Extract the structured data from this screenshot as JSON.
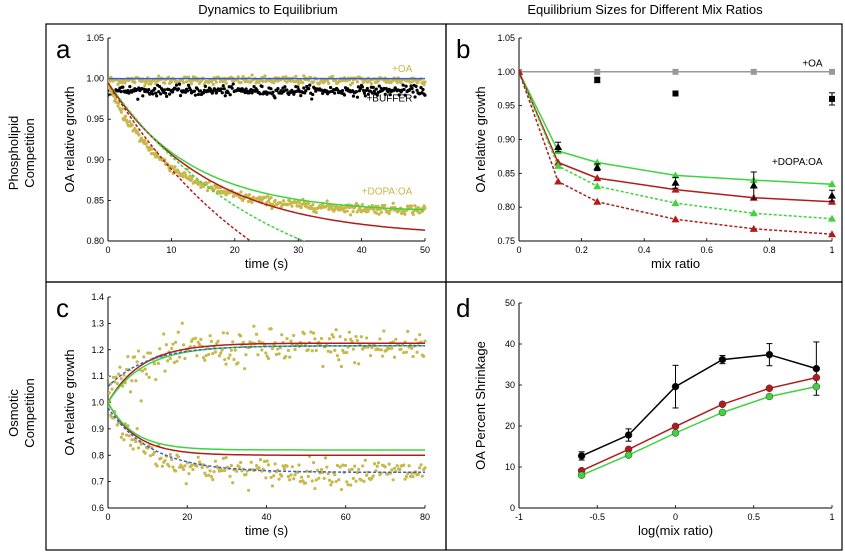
{
  "column_titles": [
    "Dynamics to Equilibrium",
    "Equilibrium Sizes for Different Mix Ratios"
  ],
  "row_titles": [
    [
      "Phospholipid",
      "Competition"
    ],
    [
      "Osmotic",
      "Competition"
    ]
  ],
  "colors": {
    "gold": "#c8b84a",
    "red": "#b01c1c",
    "green": "#3fd43f",
    "blue_dotted": "#3a5fd0",
    "gray": "#999999",
    "black": "#000000"
  },
  "chart_data": [
    {
      "panel": "a",
      "type": "scatter",
      "xlabel": "time (s)",
      "ylabel": "OA relative growth",
      "xlim": [
        0,
        50
      ],
      "ylim": [
        0.8,
        1.05
      ],
      "xticks": [
        0,
        10,
        20,
        30,
        40,
        50
      ],
      "yticks": [
        0.8,
        0.85,
        0.9,
        0.95,
        1.0,
        1.05
      ],
      "ytick_labels": [
        "0.80",
        "0.85",
        "0.90",
        "0.95",
        "1.00",
        "1.05"
      ],
      "annotations": [
        {
          "text": "+OA",
          "x": 48,
          "y": 1.008,
          "color": "gold"
        },
        {
          "text": "+BUFFER",
          "x": 48,
          "y": 0.972,
          "color": "black"
        },
        {
          "text": "+DOPA:OA",
          "x": 48,
          "y": 0.857,
          "color": "gold"
        }
      ],
      "scatter_series": [
        {
          "name": "+OA data",
          "color": "gold",
          "model": "const",
          "level": 0.998,
          "noise": 0.0025,
          "x_range": [
            0,
            50
          ],
          "n": 320
        },
        {
          "name": "+BUFFER data",
          "color": "black",
          "model": "const",
          "level": 0.985,
          "noise": 0.003,
          "x_range": [
            0,
            50
          ],
          "n": 320
        },
        {
          "name": "+DOPA:OA data",
          "color": "gold",
          "model": "exp",
          "start": 0.99,
          "end": 0.838,
          "tau": 9.5,
          "noise": 0.003,
          "x_range": [
            0,
            50
          ],
          "n": 380
        }
      ],
      "line_series": [
        {
          "name": "+OA fit",
          "color": "blue_dotted",
          "style": "solid",
          "model": "const",
          "level": 1.0,
          "x_range": [
            0,
            50
          ]
        },
        {
          "name": "green solid",
          "color": "green",
          "style": "solid",
          "model": "exp",
          "start": 0.995,
          "end": 0.835,
          "tau": 13,
          "x_range": [
            0,
            50
          ]
        },
        {
          "name": "red solid",
          "color": "red",
          "style": "solid",
          "model": "exp",
          "start": 0.995,
          "end": 0.805,
          "tau": 16,
          "x_range": [
            0,
            50
          ]
        },
        {
          "name": "green dotted",
          "color": "green",
          "style": "dotted",
          "model": "exp",
          "start": 0.995,
          "end": 0.72,
          "tau": 25,
          "x_range": [
            0,
            50
          ]
        },
        {
          "name": "red dotted",
          "color": "red",
          "style": "dotted",
          "model": "exp",
          "start": 0.995,
          "end": 0.65,
          "tau": 27,
          "x_range": [
            0,
            50
          ]
        }
      ]
    },
    {
      "panel": "b",
      "type": "line",
      "xlabel": "mix ratio",
      "ylabel": "OA relative growth",
      "xlim": [
        0,
        1
      ],
      "ylim": [
        0.75,
        1.05
      ],
      "xticks": [
        0,
        0.2,
        0.4,
        0.6,
        0.8,
        1
      ],
      "xtick_labels": [
        "0",
        "0.2",
        "0.4",
        "0.6",
        "0.8",
        "1"
      ],
      "yticks": [
        0.75,
        0.8,
        0.85,
        0.9,
        0.95,
        1.0,
        1.05
      ],
      "ytick_labels": [
        "0.75",
        "0.80",
        "0.85",
        "0.90",
        "0.95",
        "1.00",
        "1.05"
      ],
      "annotations": [
        {
          "text": "+OA",
          "x": 0.97,
          "y": 1.008,
          "color": "black"
        },
        {
          "text": "+DOPA:OA",
          "x": 0.97,
          "y": 0.862,
          "color": "black"
        }
      ],
      "series": [
        {
          "name": "+OA",
          "color": "gray",
          "style": "solid",
          "marker": "square",
          "x": [
            0,
            0.25,
            0.5,
            0.75,
            1
          ],
          "y": [
            1.0,
            1.0,
            1.0,
            1.0,
            1.0
          ]
        },
        {
          "name": "green solid",
          "color": "green",
          "style": "solid",
          "marker": "triangle",
          "x": [
            0,
            0.125,
            0.25,
            0.5,
            0.75,
            1
          ],
          "y": [
            1.0,
            0.883,
            0.866,
            0.847,
            0.84,
            0.834
          ]
        },
        {
          "name": "red solid",
          "color": "red",
          "style": "solid",
          "marker": "triangle",
          "x": [
            0,
            0.125,
            0.25,
            0.5,
            0.75,
            1
          ],
          "y": [
            1.0,
            0.866,
            0.843,
            0.826,
            0.814,
            0.808
          ]
        },
        {
          "name": "green dotted",
          "color": "green",
          "style": "dotted",
          "marker": "triangle",
          "x": [
            0,
            0.125,
            0.25,
            0.5,
            0.75,
            1
          ],
          "y": [
            1.0,
            0.861,
            0.831,
            0.806,
            0.791,
            0.783
          ]
        },
        {
          "name": "red dotted",
          "color": "red",
          "style": "dotted",
          "marker": "triangle",
          "x": [
            0,
            0.125,
            0.25,
            0.5,
            0.75,
            1
          ],
          "y": [
            1.0,
            0.838,
            0.808,
            0.782,
            0.768,
            0.76
          ]
        }
      ],
      "error_points": [
        {
          "name": "OA data",
          "marker": "square",
          "x": [
            0.25,
            0.5,
            1
          ],
          "y": [
            0.988,
            0.968,
            0.96
          ],
          "err": [
            0.004,
            0.003,
            0.009
          ]
        },
        {
          "name": "DOPA:OA data",
          "marker": "triangle",
          "x": [
            0.125,
            0.25,
            0.5,
            0.75,
            1
          ],
          "y": [
            0.889,
            0.859,
            0.836,
            0.832,
            0.817
          ],
          "err": [
            0.007,
            0.005,
            0.008,
            0.02,
            0.008
          ]
        }
      ]
    },
    {
      "panel": "c",
      "type": "scatter",
      "xlabel": "time (s)",
      "ylabel": "OA relative growth",
      "xlim": [
        0,
        80
      ],
      "ylim": [
        0.6,
        1.4
      ],
      "xticks": [
        0,
        20,
        40,
        60,
        80
      ],
      "yticks": [
        0.6,
        0.7,
        0.8,
        0.9,
        1.0,
        1.1,
        1.2,
        1.3,
        1.4
      ],
      "ytick_labels": [
        "0.6",
        "0.7",
        "0.8",
        "0.9",
        "1.0",
        "1.1",
        "1.2",
        "1.3",
        "1.4"
      ],
      "scatter_series": [
        {
          "name": "swelling data",
          "color": "gold",
          "model": "exp",
          "start": 1.05,
          "end": 1.21,
          "tau": 9,
          "noise": 0.035,
          "x_range": [
            0,
            80
          ],
          "n": 240
        },
        {
          "name": "shrinking data",
          "color": "gold",
          "model": "exp",
          "start": 0.99,
          "end": 0.735,
          "tau": 9,
          "noise": 0.025,
          "x_range": [
            0,
            80
          ],
          "n": 240
        }
      ],
      "line_series": [
        {
          "name": "red up",
          "color": "red",
          "style": "solid",
          "model": "exp",
          "start": 1.0,
          "end": 1.225,
          "tau": 8.5,
          "x_range": [
            0,
            80
          ]
        },
        {
          "name": "green up",
          "color": "green",
          "style": "solid",
          "model": "exp",
          "start": 1.0,
          "end": 1.215,
          "tau": 9,
          "x_range": [
            0,
            80
          ]
        },
        {
          "name": "blue up",
          "color": "blue_dotted",
          "style": "dotted",
          "model": "exp",
          "start": 1.06,
          "end": 1.215,
          "tau": 10,
          "x_range": [
            0,
            80
          ]
        },
        {
          "name": "red down",
          "color": "red",
          "style": "solid",
          "model": "exp",
          "start": 1.0,
          "end": 0.8,
          "tau": 7,
          "x_range": [
            0,
            80
          ]
        },
        {
          "name": "green down",
          "color": "green",
          "style": "solid",
          "model": "exp",
          "start": 1.0,
          "end": 0.82,
          "tau": 6.5,
          "x_range": [
            0,
            80
          ]
        },
        {
          "name": "blue down",
          "color": "blue_dotted",
          "style": "dotted",
          "model": "exp",
          "start": 0.98,
          "end": 0.735,
          "tau": 11,
          "x_range": [
            0,
            80
          ]
        }
      ]
    },
    {
      "panel": "d",
      "type": "line",
      "xlabel": "log(mix ratio)",
      "ylabel": "OA Percent Shrinkage",
      "xlim": [
        -1,
        1
      ],
      "ylim": [
        0,
        50
      ],
      "xticks": [
        -1,
        -0.5,
        0,
        0.5,
        1
      ],
      "xtick_labels": [
        "-1",
        "-0.5",
        "0",
        "0.5",
        "1"
      ],
      "yticks": [
        0,
        10,
        20,
        30,
        40,
        50
      ],
      "ytick_labels": [
        "0",
        "10",
        "20",
        "30",
        "40",
        "50"
      ],
      "series": [
        {
          "name": "data",
          "color": "black",
          "style": "solid",
          "marker": "circle",
          "x": [
            -0.6,
            -0.3,
            0,
            0.3,
            0.6,
            0.9
          ],
          "y": [
            12.7,
            17.8,
            29.6,
            36.2,
            37.4,
            34
          ],
          "err": [
            1,
            1.5,
            5.2,
            1,
            2.7,
            6.5
          ]
        },
        {
          "name": "red",
          "color": "red",
          "style": "solid",
          "marker": "circle",
          "x": [
            -0.6,
            -0.3,
            0,
            0.3,
            0.6,
            0.9
          ],
          "y": [
            9.1,
            14.3,
            19.9,
            25.3,
            29.2,
            31.8
          ]
        },
        {
          "name": "green",
          "color": "green",
          "style": "solid",
          "marker": "circle",
          "x": [
            -0.6,
            -0.3,
            0,
            0.3,
            0.6,
            0.9
          ],
          "y": [
            8,
            12.9,
            18.3,
            23.3,
            27.2,
            29.6
          ]
        }
      ]
    }
  ]
}
